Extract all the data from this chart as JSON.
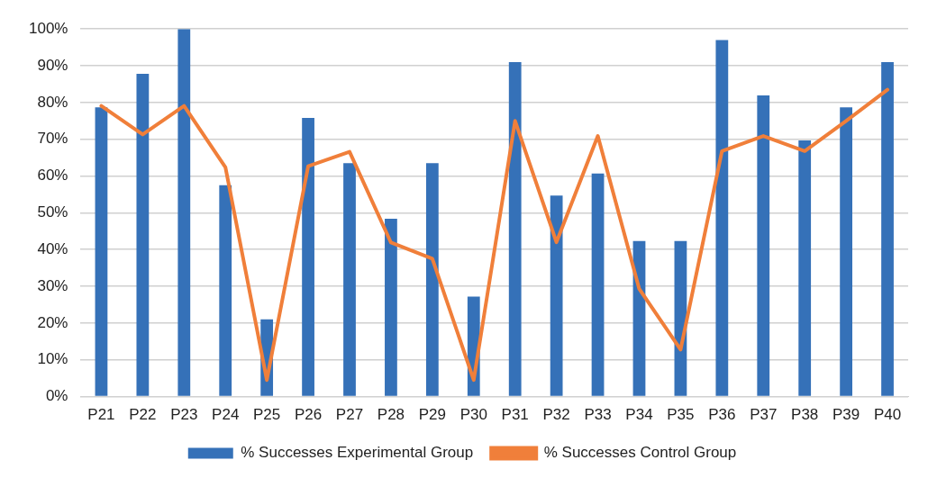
{
  "chart_data": {
    "type": "bar",
    "categories": [
      "P21",
      "P22",
      "P23",
      "P24",
      "P25",
      "P26",
      "P27",
      "P28",
      "P29",
      "P30",
      "P31",
      "P32",
      "P33",
      "P34",
      "P35",
      "P36",
      "P37",
      "P38",
      "P39",
      "P40"
    ],
    "series": [
      {
        "name": "% Successes Experimental Group",
        "color": "#3571b8",
        "values": [
          78.7,
          87.8,
          100,
          57.5,
          21,
          75.8,
          63.5,
          48.4,
          63.5,
          27.2,
          91,
          54.7,
          60.7,
          42.3,
          42.3,
          97,
          81.9,
          69.7,
          78.7,
          91
        ]
      },
      {
        "name": "% Successes Control Group",
        "type": "line",
        "color": "#f07f3a",
        "values": [
          79.1,
          71.3,
          79.1,
          62.4,
          4.5,
          62.7,
          66.6,
          41.9,
          37.5,
          4.5,
          75,
          42,
          70.9,
          29.3,
          12.8,
          66.8,
          70.9,
          66.8,
          75,
          83.5
        ]
      }
    ],
    "ylim": [
      0,
      100
    ],
    "yticks": [
      {
        "value": 0,
        "label": "0%"
      },
      {
        "value": 10,
        "label": "10%"
      },
      {
        "value": 20,
        "label": "20%"
      },
      {
        "value": 30,
        "label": "30%"
      },
      {
        "value": 40,
        "label": "40%"
      },
      {
        "value": 50,
        "label": "50%"
      },
      {
        "value": 60,
        "label": "60%"
      },
      {
        "value": 70,
        "label": "70%"
      },
      {
        "value": 80,
        "label": "80%"
      },
      {
        "value": 90,
        "label": "90%"
      },
      {
        "value": 100,
        "label": "100%"
      }
    ],
    "grid": "y",
    "legend": "bottom",
    "marker": "none",
    "line_style": "solid"
  }
}
